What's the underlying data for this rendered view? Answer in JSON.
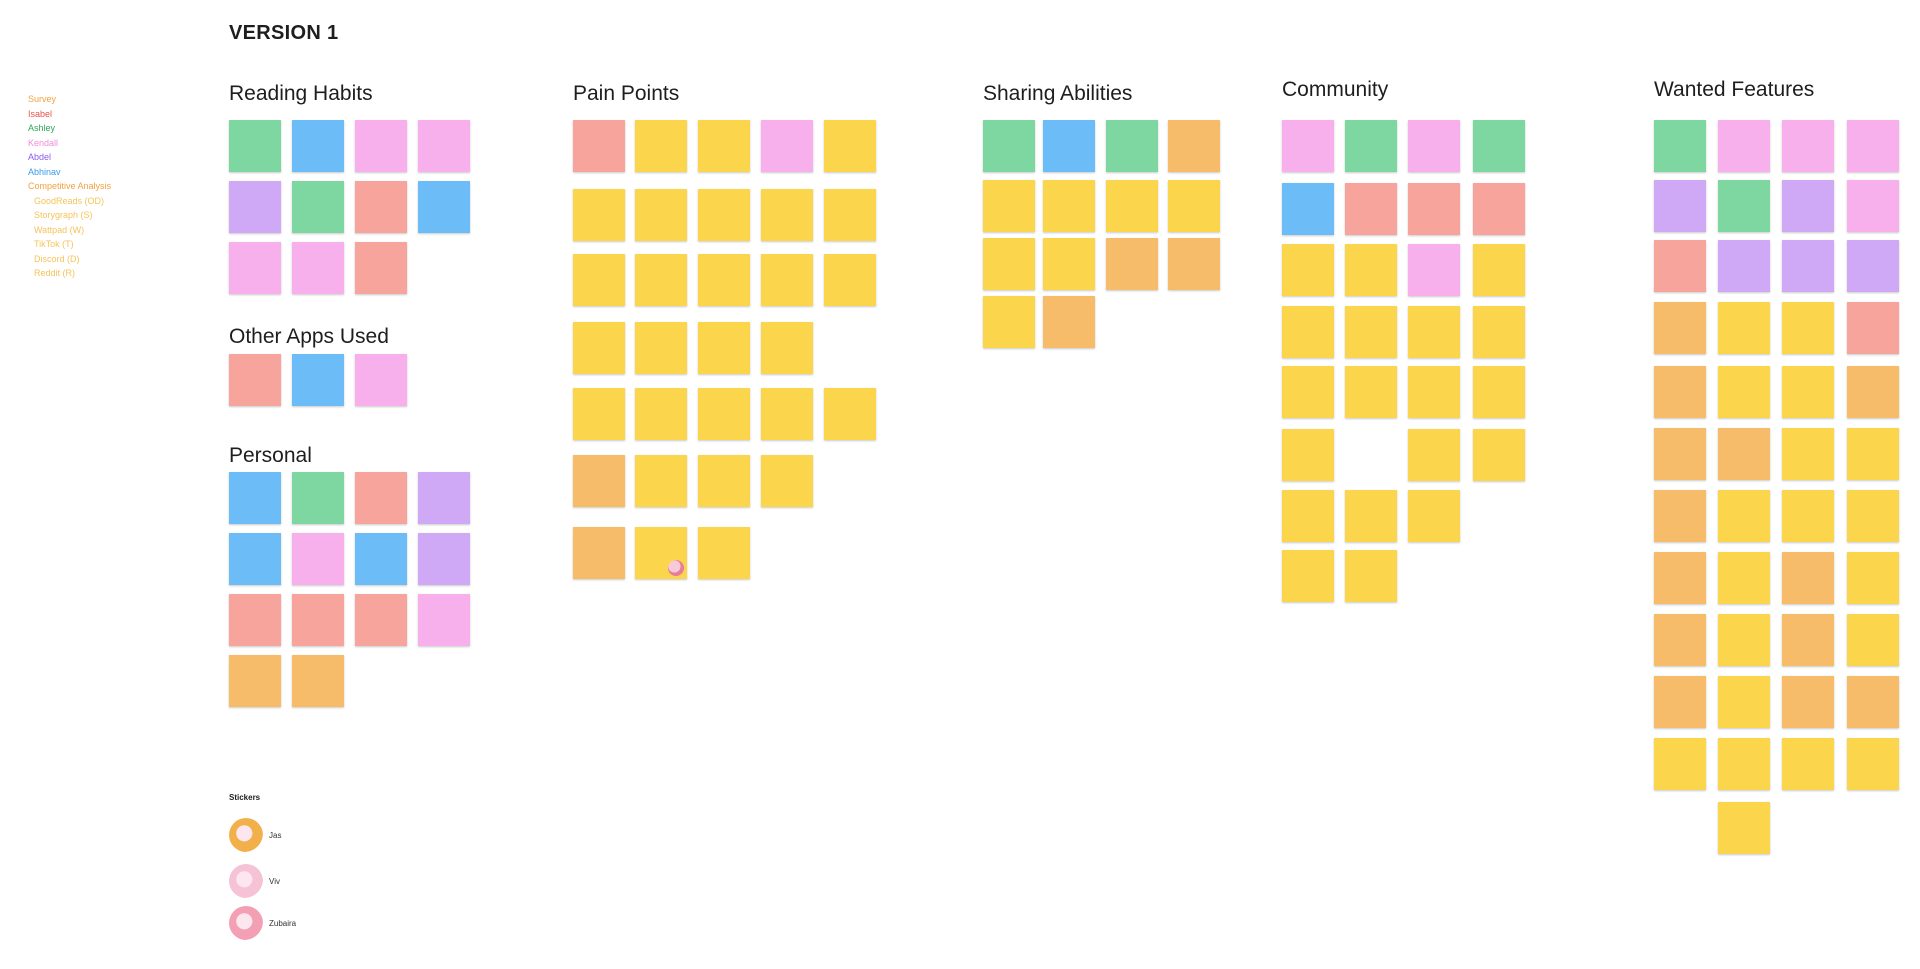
{
  "board": {
    "title": "VERSION 1"
  },
  "colors": {
    "yellow": "#fbd54b",
    "orange": "#f7bc6a",
    "green": "#7ed6a0",
    "blue": "#6bbcf7",
    "pink": "#f8b0ec",
    "purple": "#cfa9f5",
    "red": "#f7a59c"
  },
  "legend": [
    {
      "label": "Survey",
      "color": "#f4a13f"
    },
    {
      "label": "Isabel",
      "color": "#e8534a"
    },
    {
      "label": "Ashley",
      "color": "#2fa65a"
    },
    {
      "label": "Kendall",
      "color": "#f08bd9"
    },
    {
      "label": "Abdel",
      "color": "#8a5cf0"
    },
    {
      "label": "Abhinav",
      "color": "#3a9be8"
    },
    {
      "label": "Competitive Analysis",
      "color": "#f4a13f"
    },
    {
      "label": "GoodReads (OD)",
      "color": "#f6c35a",
      "sub": true
    },
    {
      "label": "Storygraph (S)",
      "color": "#f6c35a",
      "sub": true
    },
    {
      "label": "Wattpad (W)",
      "color": "#f6c35a",
      "sub": true
    },
    {
      "label": "TikTok (T)",
      "color": "#f6c35a",
      "sub": true
    },
    {
      "label": "Discord (D)",
      "color": "#f6c35a",
      "sub": true
    },
    {
      "label": "Reddit (R)",
      "color": "#f6c35a",
      "sub": true
    }
  ],
  "sections": [
    {
      "title": "Reading Habits",
      "notes": [
        {
          "c": "green",
          "text": ""
        },
        {
          "c": "blue",
          "text": ""
        },
        {
          "c": "pink",
          "text": ""
        },
        {
          "c": "pink",
          "text": ""
        },
        {
          "c": "purple",
          "text": ""
        },
        {
          "c": "green",
          "text": ""
        },
        {
          "c": "red",
          "text": ""
        },
        {
          "c": "blue",
          "text": ""
        },
        {
          "c": "pink",
          "text": ""
        },
        {
          "c": "pink",
          "text": ""
        },
        {
          "c": "red",
          "text": ""
        }
      ]
    },
    {
      "title": "Other Apps Used",
      "notes": [
        {
          "c": "red",
          "text": ""
        },
        {
          "c": "blue",
          "text": ""
        },
        {
          "c": "pink",
          "text": ""
        }
      ]
    },
    {
      "title": "Personal",
      "notes": [
        {
          "c": "blue",
          "text": ""
        },
        {
          "c": "green",
          "text": ""
        },
        {
          "c": "red",
          "text": ""
        },
        {
          "c": "purple",
          "text": ""
        },
        {
          "c": "blue",
          "text": ""
        },
        {
          "c": "pink",
          "text": ""
        },
        {
          "c": "blue",
          "text": ""
        },
        {
          "c": "purple",
          "text": ""
        },
        {
          "c": "red",
          "text": ""
        },
        {
          "c": "red",
          "text": ""
        },
        {
          "c": "red",
          "text": ""
        },
        {
          "c": "pink",
          "text": ""
        },
        {
          "c": "orange",
          "text": ""
        },
        {
          "c": "orange",
          "text": ""
        }
      ]
    },
    {
      "title": "Pain Points",
      "notes": []
    },
    {
      "title": "Sharing Abilities",
      "notes": []
    },
    {
      "title": "Community",
      "notes": []
    },
    {
      "title": "Wanted Features",
      "notes": []
    }
  ],
  "stickers": {
    "title": "Stickers",
    "items": [
      {
        "name": "Jas",
        "color": "#f2b04a"
      },
      {
        "name": "Viv",
        "color": "#f6c2d6"
      },
      {
        "name": "Zubaira",
        "color": "#f3a0b5"
      }
    ]
  }
}
